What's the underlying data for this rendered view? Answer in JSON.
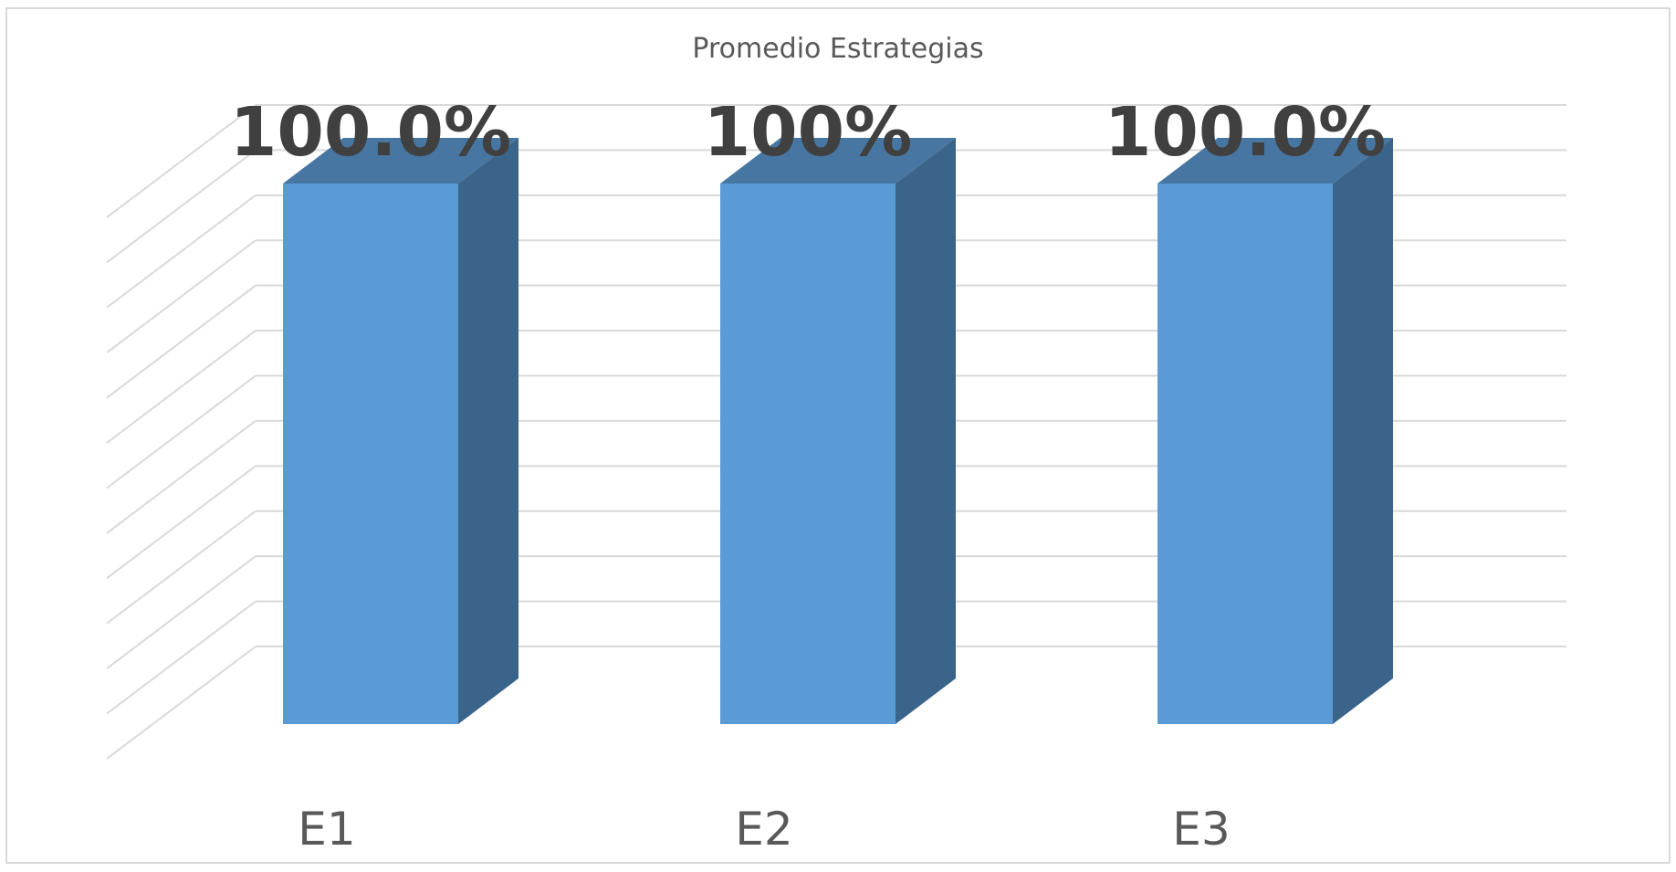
{
  "chart_data": {
    "type": "bar",
    "style": "3d-column",
    "title": "Promedio Estrategias",
    "categories": [
      "E1",
      "E2",
      "E3"
    ],
    "values": [
      1.0,
      1.0,
      1.0
    ],
    "data_labels": [
      "100.0%",
      "100%",
      "100.0%"
    ],
    "xlabel": "",
    "ylabel": "",
    "ylim": [
      0,
      1.2
    ],
    "grid": true,
    "legend": "none",
    "colors": {
      "bar_front": "#5b9bd5",
      "bar_side": "#3a6489",
      "bar_top": "#4776a3",
      "gridline": "#d9d9d9",
      "frame": "#d9d9d9",
      "text": "#595959",
      "data_label": "#404040"
    }
  }
}
